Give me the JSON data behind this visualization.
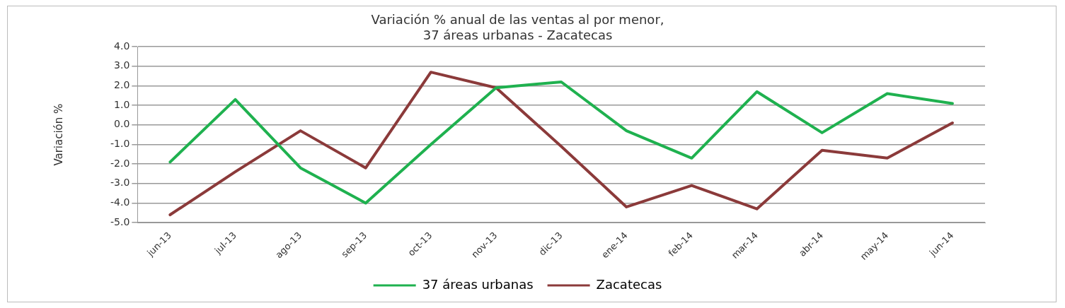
{
  "chart_data": {
    "type": "line",
    "title": "Variación % anual de las ventas al por menor,\n37 áreas urbanas - Zacatecas",
    "ylabel": "Variación %",
    "categories": [
      "jun-13",
      "jul-13",
      "ago-13",
      "sep-13",
      "oct-13",
      "nov-13",
      "dic-13",
      "ene-14",
      "feb-14",
      "mar-14",
      "abr-14",
      "may-14",
      "jun-14"
    ],
    "series": [
      {
        "name": "37 áreas urbanas",
        "color": "#1fb14f",
        "values": [
          -1.9,
          1.3,
          -2.2,
          -4.0,
          -1.0,
          1.9,
          2.2,
          -0.3,
          -1.7,
          1.7,
          -0.4,
          1.6,
          1.1
        ]
      },
      {
        "name": "Zacatecas",
        "color": "#8b3a3a",
        "values": [
          -4.6,
          -2.4,
          -0.3,
          -2.2,
          2.7,
          1.9,
          -1.1,
          -4.2,
          -3.1,
          -4.3,
          -1.3,
          -1.7,
          0.1
        ]
      }
    ],
    "ylim": [
      -5,
      4
    ],
    "yticks": [
      {
        "value": 4,
        "label": "4.0"
      },
      {
        "value": 3,
        "label": "3.0"
      },
      {
        "value": 2,
        "label": "2.0"
      },
      {
        "value": 1,
        "label": "1.0"
      },
      {
        "value": 0,
        "label": "0.0"
      },
      {
        "value": -1,
        "label": "-1.0"
      },
      {
        "value": -2,
        "label": "-2.0"
      },
      {
        "value": -3,
        "label": "-3.0"
      },
      {
        "value": -4,
        "label": "-4.0"
      },
      {
        "value": -5,
        "label": "-5.0"
      }
    ],
    "grid": "y",
    "legend": "bottom",
    "marker": "none",
    "line_style": "solid"
  }
}
